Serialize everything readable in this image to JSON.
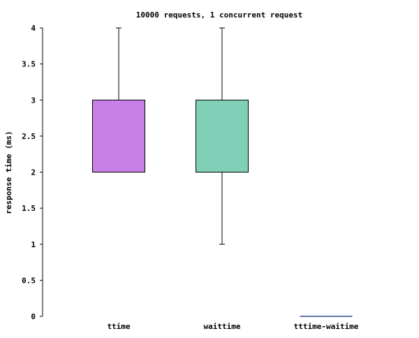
{
  "chart_data": {
    "type": "boxplot",
    "title": "10000 requests, 1 concurrent request",
    "xlabel": "",
    "ylabel": "response time (ms)",
    "ylim": [
      0,
      4
    ],
    "yticks": [
      0,
      0.5,
      1,
      1.5,
      2,
      2.5,
      3,
      3.5,
      4
    ],
    "ytick_labels": [
      "0",
      "0.5",
      "1",
      "1.5",
      "2",
      "2.5",
      "3",
      "3.5",
      "4"
    ],
    "grid": false,
    "categories": [
      "ttime",
      "waittime",
      "tttime-waitime"
    ],
    "boxes": [
      {
        "label": "ttime",
        "min": 2,
        "q1": 2,
        "median": 2,
        "q3": 3,
        "max": 4,
        "color": "#c880e8"
      },
      {
        "label": "waittime",
        "min": 1,
        "q1": 2,
        "median": 2,
        "q3": 3,
        "max": 4,
        "color": "#80d0b8"
      },
      {
        "label": "tttime-waitime",
        "min": 0,
        "q1": 0,
        "median": 0,
        "q3": 0,
        "max": 0,
        "color": "#2a4a8c"
      }
    ]
  }
}
